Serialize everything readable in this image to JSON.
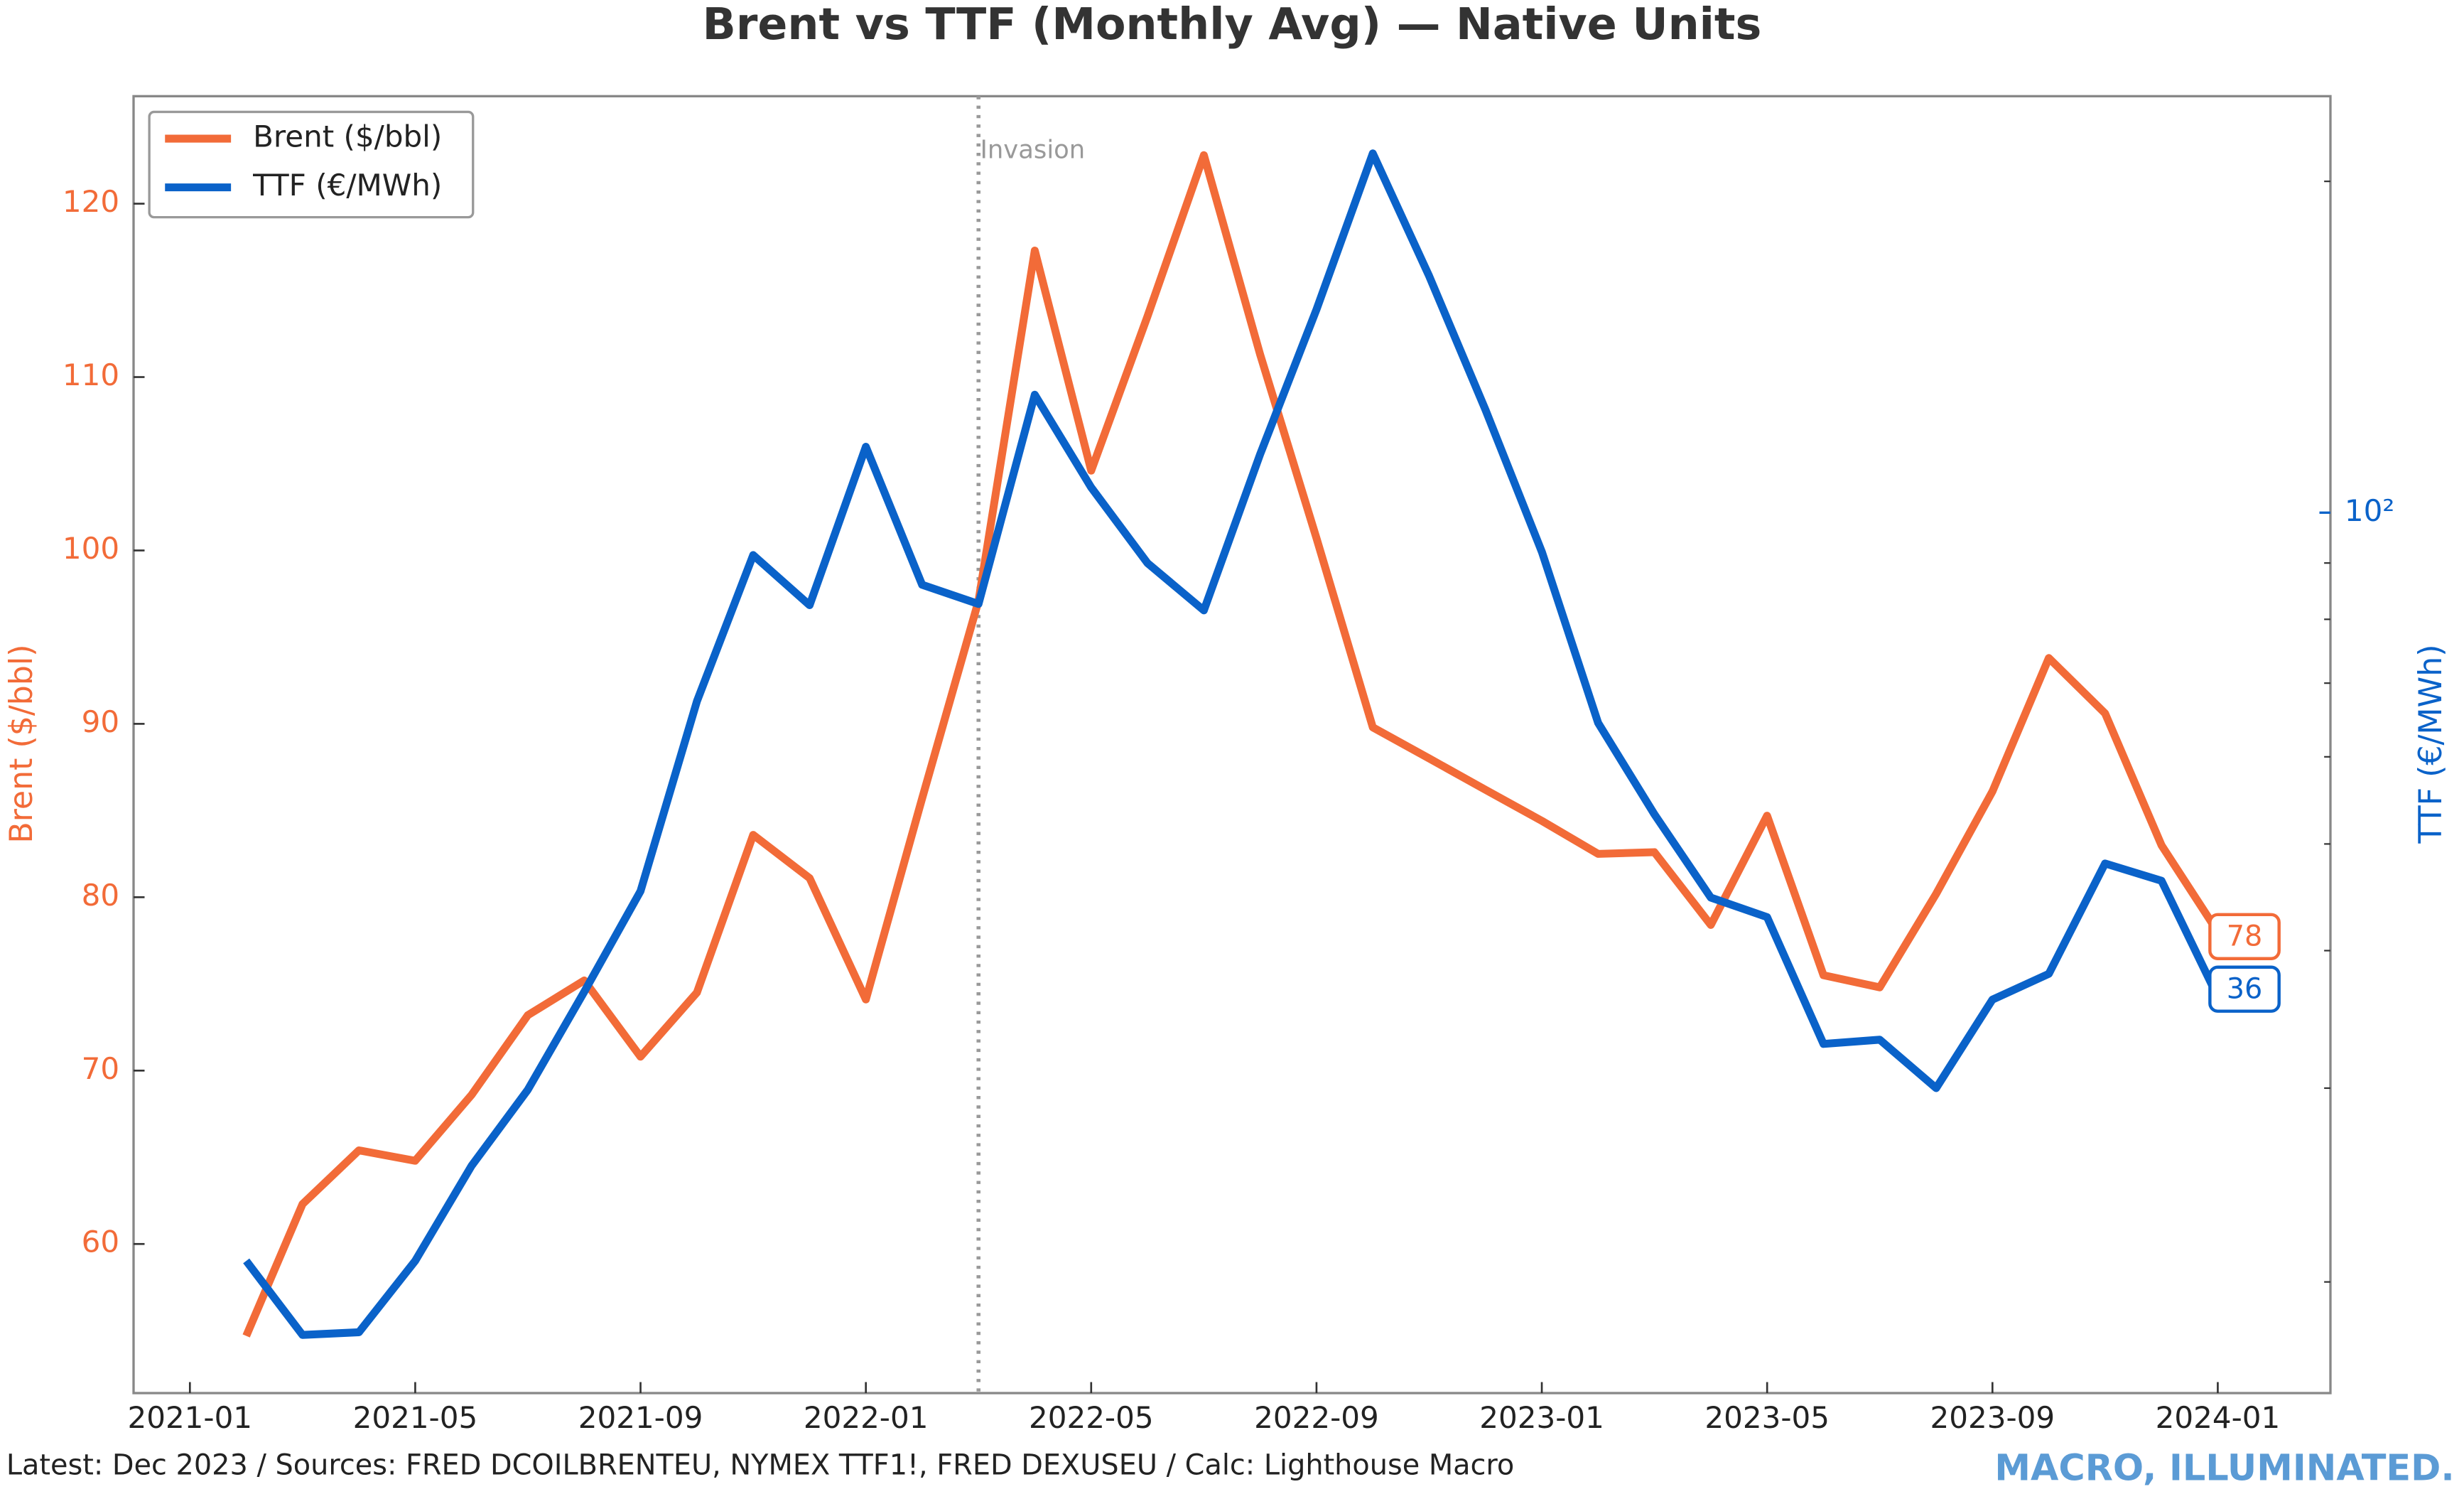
{
  "chart_data": {
    "type": "line",
    "title": "Brent vs TTF (Monthly Avg) — Native Units",
    "ylabel": "Brent ($/bbl)",
    "y2label": "TTF (€/MWh)",
    "footer": "Latest: Dec 2023 / Sources: FRED DCOILBRENTEU, NYMEX TTF1!, FRED DEXUSEU / Calc: Lighthouse Macro",
    "watermark": "MACRO, ILLUMINATED.",
    "x": [
      "2021-02",
      "2021-03",
      "2021-04",
      "2021-05",
      "2021-06",
      "2021-07",
      "2021-08",
      "2021-09",
      "2021-10",
      "2021-11",
      "2021-12",
      "2022-01",
      "2022-02",
      "2022-03",
      "2022-04",
      "2022-05",
      "2022-06",
      "2022-07",
      "2022-08",
      "2022-09",
      "2022-10",
      "2022-11",
      "2022-12",
      "2023-01",
      "2023-02",
      "2023-03",
      "2023-04",
      "2023-05",
      "2023-06",
      "2023-07",
      "2023-08",
      "2023-09",
      "2023-10",
      "2023-11",
      "2023-12",
      "2024-01"
    ],
    "series": [
      {
        "name": "Brent ($/bbl)",
        "color": "#f26b38",
        "axis": "y",
        "values": [
          54.7,
          62.3,
          65.4,
          64.8,
          68.6,
          73.2,
          75.2,
          70.8,
          74.5,
          83.6,
          81.1,
          74.1,
          85.7,
          97.1,
          117.3,
          104.6,
          113.5,
          122.8,
          111.3,
          100.7,
          89.8,
          88.0,
          86.2,
          84.4,
          82.5,
          82.6,
          78.4,
          84.7,
          75.5,
          74.8,
          80.2,
          86.1,
          93.8,
          90.6,
          83.0,
          78.0
        ],
        "value_labels": [
          null,
          null,
          null,
          null,
          null,
          null,
          null,
          null,
          null,
          null,
          null,
          null,
          null,
          null,
          null,
          null,
          null,
          null,
          null,
          null,
          null,
          null,
          null,
          null,
          null,
          null,
          null,
          null,
          null,
          null,
          null,
          null,
          null,
          null,
          null,
          "78"
        ]
      },
      {
        "name": "TTF (€/MWh)",
        "color": "#0a62c9",
        "axis": "y2",
        "values": [
          20.9,
          17.9,
          18.0,
          20.9,
          25.5,
          29.9,
          36.7,
          45.3,
          67.4,
          91.5,
          82.4,
          114.8,
          86.0,
          82.6,
          128,
          105.4,
          90.0,
          81.5,
          113,
          153,
          212,
          164,
          124,
          92.1,
          64.4,
          53.2,
          44.7,
          42.9,
          32.9,
          33.2,
          30.0,
          36.1,
          38.1,
          48.0,
          46.3,
          36.3
        ],
        "value_labels": [
          null,
          null,
          null,
          null,
          null,
          null,
          null,
          null,
          null,
          null,
          null,
          null,
          null,
          null,
          null,
          null,
          null,
          null,
          null,
          null,
          null,
          null,
          null,
          null,
          null,
          null,
          null,
          null,
          null,
          null,
          null,
          null,
          null,
          null,
          null,
          "36"
        ]
      }
    ],
    "xlim": [
      "2020-12",
      "2024-03"
    ],
    "xticks": [
      "2021-01",
      "2021-05",
      "2021-09",
      "2022-01",
      "2022-05",
      "2022-09",
      "2023-01",
      "2023-05",
      "2023-09",
      "2024-01"
    ],
    "ylim": [
      51.4,
      126.2
    ],
    "yticks": [
      60,
      70,
      80,
      90,
      100,
      110,
      120
    ],
    "y2lim": [
      15.85,
      239
    ],
    "y2log": true,
    "y2ticks": [
      {
        "value": 100,
        "label": "10²"
      }
    ],
    "y2minorticks": [
      20,
      30,
      40,
      50,
      60,
      70,
      80,
      90,
      200
    ],
    "vline": {
      "x": "2022-03",
      "label": "Invasion"
    },
    "legend": "upper left",
    "grid": false
  }
}
